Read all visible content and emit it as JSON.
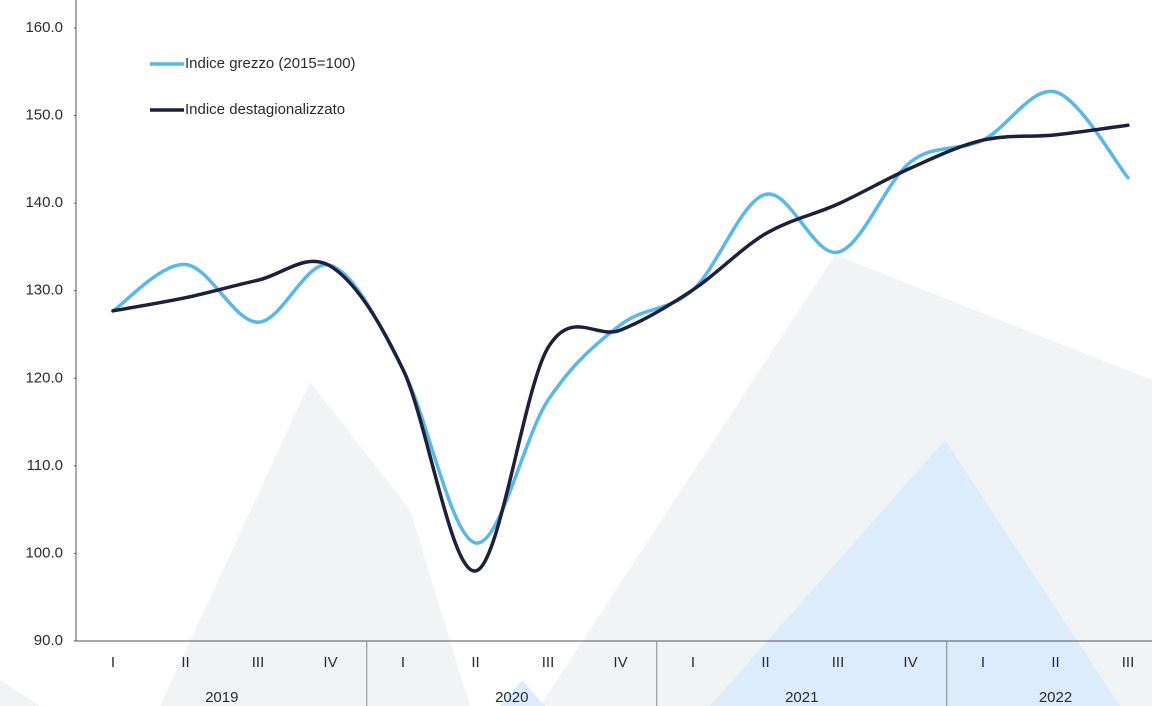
{
  "chart_data": {
    "type": "line",
    "categories": [
      "I",
      "II",
      "III",
      "IV",
      "I",
      "II",
      "III",
      "IV",
      "I",
      "II",
      "III",
      "IV",
      "I",
      "II",
      "III"
    ],
    "groups": [
      {
        "name": "2019",
        "size": 4
      },
      {
        "name": "2020",
        "size": 4
      },
      {
        "name": "2021",
        "size": 4
      },
      {
        "name": "2022",
        "size": 3
      }
    ],
    "series": [
      {
        "name": "Indice grezzo (2015=100)",
        "color": "#5ab7e6",
        "values": [
          127.7,
          133.0,
          126.4,
          132.9,
          121.0,
          101.2,
          117.5,
          126.1,
          130.1,
          141.0,
          134.4,
          144.7,
          147.2,
          152.7,
          142.9
        ]
      },
      {
        "name": "Indice destagionalizzato",
        "color": "#1e1f3b",
        "values": [
          127.7,
          129.2,
          131.2,
          132.8,
          121.0,
          98.0,
          123.5,
          125.5,
          130.1,
          136.5,
          139.9,
          144.0,
          147.2,
          147.8,
          148.9
        ]
      }
    ],
    "ylim": [
      90,
      160
    ],
    "yticks": [
      {
        "value": 90,
        "label": "90.0"
      },
      {
        "value": 100,
        "label": "100.0"
      },
      {
        "value": 110,
        "label": "110.0"
      },
      {
        "value": 120,
        "label": "120.0"
      },
      {
        "value": 130,
        "label": "130.0"
      },
      {
        "value": 140,
        "label": "140.0"
      },
      {
        "value": 150,
        "label": "150.0"
      },
      {
        "value": 160,
        "label": "160.0"
      }
    ],
    "legend": "upper left"
  }
}
